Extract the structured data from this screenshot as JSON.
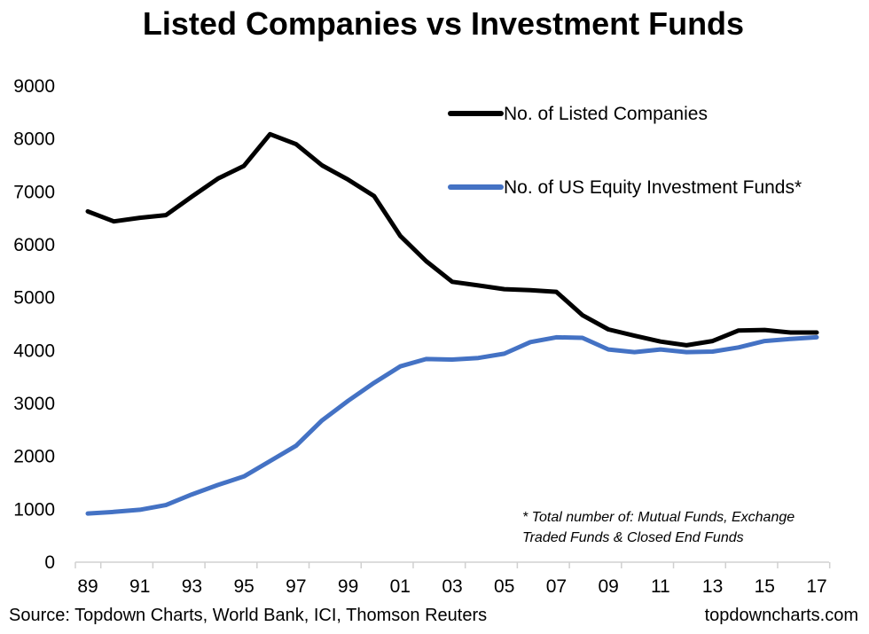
{
  "chart_data": {
    "type": "line",
    "title": "Listed Companies vs Investment Funds",
    "colors": {
      "listed": "#000000",
      "funds": "#4472C4"
    },
    "x": [
      1989,
      1990,
      1991,
      1992,
      1993,
      1994,
      1995,
      1996,
      1997,
      1998,
      1999,
      2000,
      2001,
      2002,
      2003,
      2004,
      2005,
      2006,
      2007,
      2008,
      2009,
      2010,
      2011,
      2012,
      2013,
      2014,
      2015,
      2016,
      2017
    ],
    "x_tick_values": [
      1989,
      1991,
      1993,
      1995,
      1997,
      1999,
      2001,
      2003,
      2005,
      2007,
      2009,
      2011,
      2013,
      2015,
      2017
    ],
    "x_tick_labels": [
      "89",
      "91",
      "93",
      "95",
      "97",
      "99",
      "01",
      "03",
      "05",
      "07",
      "09",
      "11",
      "13",
      "15",
      "17"
    ],
    "y_ticks": [
      "0",
      "1000",
      "2000",
      "3000",
      "4000",
      "5000",
      "6000",
      "7000",
      "8000",
      "9000"
    ],
    "ylim": [
      0,
      9000
    ],
    "grid": false,
    "legend_position": "top-right",
    "series": [
      {
        "name": "No. of Listed Companies",
        "key": "listed",
        "values": [
          6630,
          6440,
          6510,
          6560,
          6910,
          7250,
          7490,
          8090,
          7900,
          7500,
          7230,
          6920,
          6170,
          5690,
          5300,
          5230,
          5160,
          5140,
          5110,
          4670,
          4400,
          4280,
          4170,
          4100,
          4180,
          4380,
          4390,
          4340,
          4340
        ]
      },
      {
        "name": "No. of US Equity Investment Funds*",
        "key": "funds",
        "values": [
          920,
          950,
          990,
          1080,
          1280,
          1460,
          1620,
          1910,
          2200,
          2680,
          3050,
          3390,
          3700,
          3840,
          3830,
          3860,
          3940,
          4160,
          4250,
          4240,
          4020,
          3970,
          4020,
          3970,
          3980,
          4060,
          4180,
          4220,
          4250
        ]
      }
    ],
    "annotation_lines": [
      "* Total number of: Mutual Funds, Exchange",
      "Traded Funds & Closed End Funds"
    ]
  },
  "footer": {
    "source": "Source: Topdown Charts, World Bank, ICI, Thomson Reuters",
    "site": "topdowncharts.com"
  }
}
